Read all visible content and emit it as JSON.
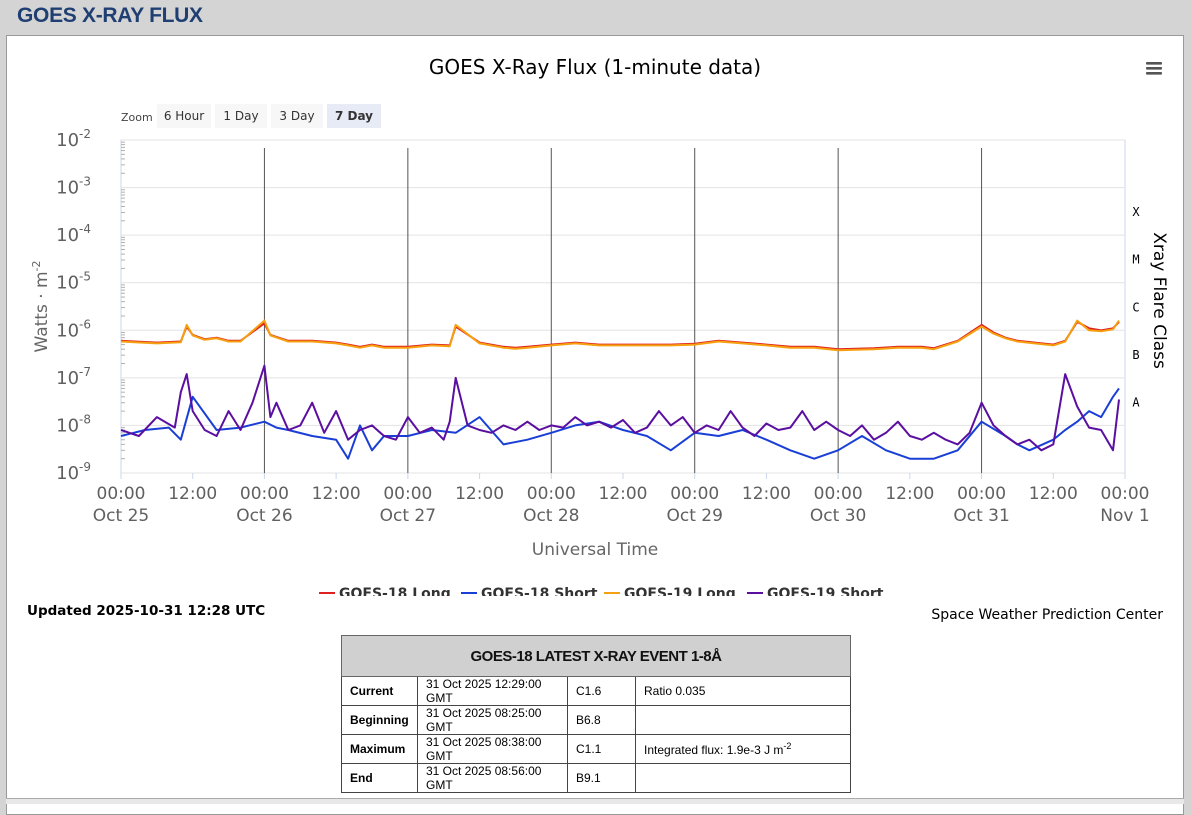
{
  "page": {
    "title": "GOES X-RAY FLUX",
    "updated": "Updated 2025-10-31 12:28 UTC",
    "credit": "Space Weather Prediction Center"
  },
  "zoom": {
    "label": "Zoom",
    "buttons": [
      "6 Hour",
      "1 Day",
      "3 Day",
      "7 Day"
    ],
    "selected": "7 Day"
  },
  "menu_icon": "hamburger-menu-icon",
  "chart_data": {
    "type": "line",
    "title": "GOES X-Ray Flux (1-minute data)",
    "xlabel": "Universal Time",
    "ylabel": "Watts · m",
    "ylabel_exp": "-2",
    "y2label": "Xray Flare Class",
    "yscale": "log",
    "ylim": [
      1e-09,
      0.01
    ],
    "y_ticks": [
      {
        "base": "10",
        "exp": "-2"
      },
      {
        "base": "10",
        "exp": "-3"
      },
      {
        "base": "10",
        "exp": "-4"
      },
      {
        "base": "10",
        "exp": "-5"
      },
      {
        "base": "10",
        "exp": "-6"
      },
      {
        "base": "10",
        "exp": "-7"
      },
      {
        "base": "10",
        "exp": "-8"
      },
      {
        "base": "10",
        "exp": "-9"
      }
    ],
    "xlim": [
      "2025-10-25 00:00",
      "2025-11-01 00:00"
    ],
    "x_ticks": [
      {
        "time": "00:00",
        "date": "Oct 25"
      },
      {
        "time": "12:00",
        "date": ""
      },
      {
        "time": "00:00",
        "date": "Oct 26"
      },
      {
        "time": "12:00",
        "date": ""
      },
      {
        "time": "00:00",
        "date": "Oct 27"
      },
      {
        "time": "12:00",
        "date": ""
      },
      {
        "time": "00:00",
        "date": "Oct 28"
      },
      {
        "time": "12:00",
        "date": ""
      },
      {
        "time": "00:00",
        "date": "Oct 29"
      },
      {
        "time": "12:00",
        "date": ""
      },
      {
        "time": "00:00",
        "date": "Oct 30"
      },
      {
        "time": "12:00",
        "date": ""
      },
      {
        "time": "00:00",
        "date": "Oct 31"
      },
      {
        "time": "12:00",
        "date": ""
      },
      {
        "time": "00:00",
        "date": "Nov 1"
      }
    ],
    "flare_classes": [
      {
        "label": "X",
        "flux": 0.0001
      },
      {
        "label": "M",
        "flux": 1e-05
      },
      {
        "label": "C",
        "flux": 1e-06
      },
      {
        "label": "B",
        "flux": 1e-07
      },
      {
        "label": "A",
        "flux": 1e-08
      }
    ],
    "day_lines": [
      "Oct 26",
      "Oct 27",
      "Oct 28",
      "Oct 29",
      "Oct 30",
      "Oct 31"
    ],
    "series": [
      {
        "name": "GOES-18 Long",
        "color": "#e02020",
        "x_hours": [
          0,
          6,
          10,
          11,
          12,
          14,
          16,
          18,
          20,
          24,
          25,
          28,
          32,
          36,
          38,
          40,
          42,
          44,
          48,
          52,
          55,
          56,
          60,
          64,
          66,
          68,
          72,
          76,
          80,
          84,
          88,
          92,
          96,
          100,
          104,
          108,
          112,
          116,
          120,
          126,
          130,
          134,
          136,
          140,
          144,
          146,
          148,
          150,
          156,
          158,
          160,
          162,
          164,
          166,
          167
        ],
        "values": [
          6e-07,
          5.5e-07,
          5.8e-07,
          1.2e-06,
          8e-07,
          6.5e-07,
          7e-07,
          6e-07,
          6e-07,
          1.4e-06,
          8e-07,
          6e-07,
          6e-07,
          5.5e-07,
          5e-07,
          4.5e-07,
          5e-07,
          4.5e-07,
          4.5e-07,
          5e-07,
          4.8e-07,
          1.2e-06,
          5.5e-07,
          4.5e-07,
          4.3e-07,
          4.5e-07,
          5e-07,
          5.5e-07,
          5e-07,
          5e-07,
          5e-07,
          5e-07,
          5.2e-07,
          6e-07,
          5.5e-07,
          5e-07,
          4.5e-07,
          4.5e-07,
          4e-07,
          4.2e-07,
          4.5e-07,
          4.5e-07,
          4.2e-07,
          6e-07,
          1.3e-06,
          9e-07,
          7e-07,
          6e-07,
          5e-07,
          6e-07,
          1.5e-06,
          1.1e-06,
          1e-06,
          1.1e-06,
          1.5e-06
        ]
      },
      {
        "name": "GOES-18 Short",
        "color": "#1a3fd6",
        "x_hours": [
          0,
          4,
          8,
          10,
          12,
          16,
          20,
          24,
          26,
          28,
          32,
          36,
          38,
          40,
          42,
          44,
          48,
          52,
          56,
          60,
          64,
          68,
          72,
          76,
          80,
          84,
          88,
          92,
          96,
          100,
          104,
          108,
          112,
          116,
          120,
          124,
          128,
          132,
          136,
          140,
          144,
          148,
          150,
          152,
          156,
          158,
          160,
          162,
          164,
          166,
          167
        ],
        "values": [
          6e-09,
          8e-09,
          9e-09,
          5e-09,
          4e-08,
          8e-09,
          9e-09,
          1.2e-08,
          9e-09,
          8e-09,
          6e-09,
          5e-09,
          2e-09,
          1e-08,
          3e-09,
          6e-09,
          6e-09,
          8e-09,
          7e-09,
          1.5e-08,
          4e-09,
          5e-09,
          7e-09,
          1e-08,
          1.2e-08,
          8e-09,
          6e-09,
          3e-09,
          7e-09,
          6e-09,
          8e-09,
          5e-09,
          3e-09,
          2e-09,
          3e-09,
          6e-09,
          3e-09,
          2e-09,
          2e-09,
          3e-09,
          1.2e-08,
          6e-09,
          4e-09,
          3e-09,
          5e-09,
          8e-09,
          1.2e-08,
          2e-08,
          1.5e-08,
          4e-08,
          6e-08
        ]
      },
      {
        "name": "GOES-19 Long",
        "color": "#f5a00f",
        "x_hours": [
          0,
          6,
          10,
          11,
          12,
          14,
          16,
          18,
          20,
          24,
          25,
          28,
          32,
          36,
          38,
          40,
          42,
          44,
          48,
          52,
          55,
          56,
          60,
          64,
          66,
          68,
          72,
          76,
          80,
          84,
          88,
          92,
          96,
          100,
          104,
          108,
          112,
          116,
          120,
          126,
          130,
          134,
          136,
          140,
          144,
          146,
          148,
          150,
          156,
          158,
          160,
          162,
          164,
          166,
          167
        ],
        "values": [
          5.8e-07,
          5.3e-07,
          5.6e-07,
          1.3e-06,
          7.8e-07,
          6.3e-07,
          6.8e-07,
          5.8e-07,
          5.8e-07,
          1.6e-06,
          7.8e-07,
          5.8e-07,
          5.8e-07,
          5.3e-07,
          4.8e-07,
          4.3e-07,
          4.8e-07,
          4.3e-07,
          4.3e-07,
          4.8e-07,
          4.6e-07,
          1.3e-06,
          5.3e-07,
          4.3e-07,
          4.1e-07,
          4.3e-07,
          4.8e-07,
          5.3e-07,
          4.8e-07,
          4.8e-07,
          4.8e-07,
          4.8e-07,
          5e-07,
          5.8e-07,
          5.3e-07,
          4.8e-07,
          4.3e-07,
          4.3e-07,
          3.8e-07,
          4e-07,
          4.3e-07,
          4.3e-07,
          4e-07,
          5.8e-07,
          1.2e-06,
          8.5e-07,
          6.8e-07,
          5.8e-07,
          4.8e-07,
          5.8e-07,
          1.6e-06,
          1e-06,
          9.5e-07,
          1.05e-06,
          1.6e-06
        ]
      },
      {
        "name": "GOES-19 Short",
        "color": "#5b0fa0",
        "x_hours": [
          0,
          3,
          6,
          9,
          10,
          11,
          12,
          14,
          16,
          18,
          20,
          22,
          24,
          25,
          26,
          28,
          30,
          32,
          34,
          36,
          38,
          40,
          42,
          44,
          46,
          48,
          50,
          52,
          54,
          55,
          56,
          58,
          60,
          62,
          64,
          66,
          68,
          70,
          72,
          74,
          76,
          78,
          80,
          82,
          84,
          86,
          88,
          90,
          92,
          94,
          96,
          98,
          100,
          102,
          104,
          106,
          108,
          110,
          112,
          114,
          116,
          118,
          120,
          122,
          124,
          126,
          128,
          130,
          132,
          134,
          136,
          138,
          140,
          142,
          144,
          146,
          148,
          150,
          152,
          154,
          156,
          158,
          160,
          162,
          164,
          166,
          167
        ],
        "values": [
          8e-09,
          6e-09,
          1.5e-08,
          9e-09,
          5e-08,
          1.2e-07,
          2e-08,
          8e-09,
          6e-09,
          2e-08,
          8e-09,
          3e-08,
          1.8e-07,
          1.5e-08,
          3e-08,
          8e-09,
          1e-08,
          3e-08,
          7e-09,
          2e-08,
          5e-09,
          8e-09,
          1e-08,
          6e-09,
          5e-09,
          1.5e-08,
          7e-09,
          9e-09,
          5e-09,
          1.2e-08,
          1e-07,
          1e-08,
          8e-09,
          7e-09,
          1e-08,
          8e-09,
          1.2e-08,
          8e-09,
          1e-08,
          9e-09,
          1.5e-08,
          1e-08,
          1.2e-08,
          9e-09,
          1.3e-08,
          7e-09,
          9e-09,
          2e-08,
          1e-08,
          1.5e-08,
          7e-09,
          1e-08,
          8e-09,
          2e-08,
          9e-09,
          6e-09,
          1.1e-08,
          8e-09,
          9e-09,
          2e-08,
          8e-09,
          1.2e-08,
          8e-09,
          6e-09,
          1e-08,
          5e-09,
          7e-09,
          1.2e-08,
          6e-09,
          5e-09,
          7e-09,
          5e-09,
          4e-09,
          7e-09,
          3e-08,
          1e-08,
          6e-09,
          4e-09,
          5e-09,
          3e-09,
          4e-09,
          1.2e-07,
          2.5e-08,
          9e-09,
          8e-09,
          3e-09,
          3.5e-08
        ]
      }
    ]
  },
  "event_table": {
    "header": "GOES-18 LATEST X-RAY EVENT 1-8Å",
    "rows": [
      {
        "label": "Current",
        "time": "31 Oct 2025 12:29:00 GMT",
        "class": "C1.6",
        "note": "Ratio 0.035",
        "note_exp": ""
      },
      {
        "label": "Beginning",
        "time": "31 Oct 2025 08:25:00 GMT",
        "class": "B6.8",
        "note": "",
        "note_exp": ""
      },
      {
        "label": "Maximum",
        "time": "31 Oct 2025 08:38:00 GMT",
        "class": "C1.1",
        "note": "Integrated flux: 1.9e-3 J m",
        "note_exp": "-2"
      },
      {
        "label": "End",
        "time": "31 Oct 2025 08:56:00 GMT",
        "class": "B9.1",
        "note": "",
        "note_exp": ""
      }
    ]
  }
}
